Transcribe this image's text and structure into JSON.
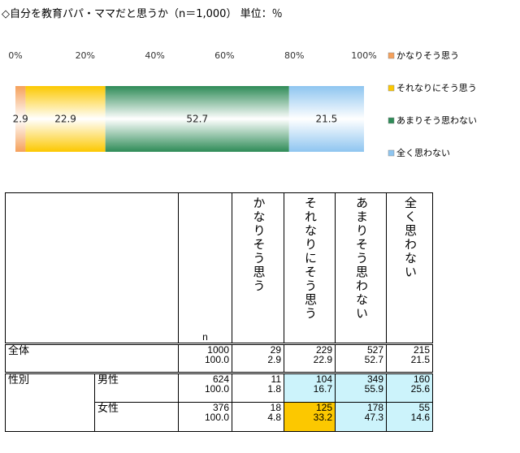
{
  "title": "◇自分を教育パパ・ママだと思うか（n＝1,000） 単位：％",
  "chart_data": {
    "type": "bar",
    "orientation": "horizontal",
    "stacked": true,
    "x_ticks": [
      "0%",
      "20%",
      "40%",
      "60%",
      "80%",
      "100%"
    ],
    "xlim": [
      0,
      100
    ],
    "series": [
      {
        "name": "かなりそう思う",
        "value": 2.9,
        "label": "2.9",
        "color": "#f5a05a"
      },
      {
        "name": "それなりにそう思う",
        "value": 22.9,
        "label": "22.9",
        "color": "#fcc800"
      },
      {
        "name": "あまりそう思わない",
        "value": 52.7,
        "label": "52.7",
        "color": "#2e8b57"
      },
      {
        "name": "全く思わない",
        "value": 21.5,
        "label": "21.5",
        "color": "#8ec5f0"
      }
    ],
    "legend_position": "right",
    "grid": false
  },
  "table": {
    "headers": {
      "n": "n",
      "cols": [
        "かなりそう思う",
        "それなりにそう思う",
        "あまりそう思わない",
        "全く思わない"
      ]
    },
    "rows": [
      {
        "label": "全体",
        "sub": "",
        "n": "1000",
        "pct_n": "100.0",
        "counts": [
          "29",
          "229",
          "527",
          "215"
        ],
        "pcts": [
          "2.9",
          "22.9",
          "52.7",
          "21.5"
        ]
      },
      {
        "label": "性別",
        "sub": "男性",
        "n": "624",
        "pct_n": "100.0",
        "counts": [
          "11",
          "104",
          "349",
          "160"
        ],
        "pcts": [
          "1.8",
          "16.7",
          "55.9",
          "25.6"
        ]
      },
      {
        "label": "",
        "sub": "女性",
        "n": "376",
        "pct_n": "100.0",
        "counts": [
          "18",
          "125",
          "178",
          "55"
        ],
        "pcts": [
          "4.8",
          "33.2",
          "47.3",
          "14.6"
        ]
      }
    ]
  }
}
